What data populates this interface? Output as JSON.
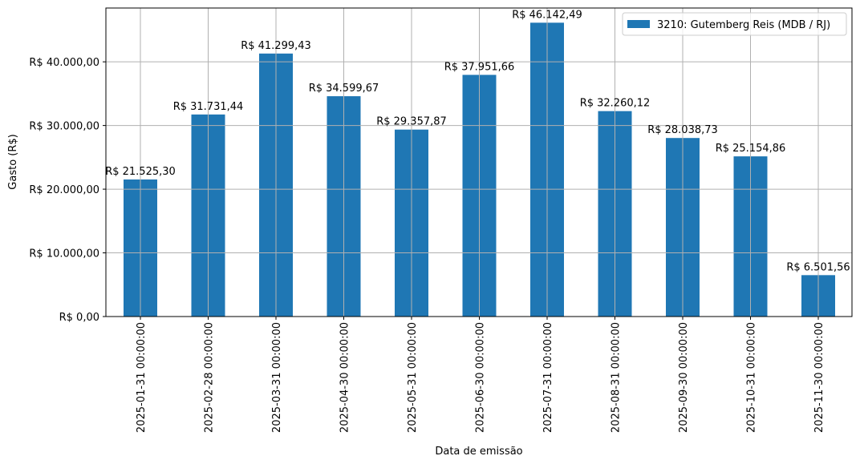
{
  "chart_data": {
    "type": "bar",
    "title": "",
    "xlabel": "Data de emissão",
    "ylabel": "Gasto (R$)",
    "categories": [
      "2025-01-31 00:00:00",
      "2025-02-28 00:00:00",
      "2025-03-31 00:00:00",
      "2025-04-30 00:00:00",
      "2025-05-31 00:00:00",
      "2025-06-30 00:00:00",
      "2025-07-31 00:00:00",
      "2025-08-31 00:00:00",
      "2025-09-30 00:00:00",
      "2025-10-31 00:00:00",
      "2025-11-30 00:00:00"
    ],
    "series": [
      {
        "name": "3210: Gutemberg Reis (MDB / RJ)",
        "color": "#1f77b4",
        "values": [
          21525.3,
          31731.44,
          41299.43,
          34599.67,
          29357.87,
          37951.66,
          46142.49,
          32260.12,
          28038.73,
          25154.86,
          6501.56
        ],
        "labels": [
          "R$ 21.525,30",
          "R$ 31.731,44",
          "R$ 41.299,43",
          "R$ 34.599,67",
          "R$ 29.357,87",
          "R$ 37.951,66",
          "R$ 46.142,49",
          "R$ 32.260,12",
          "R$ 28.038,73",
          "R$ 25.154,86",
          "R$ 6.501,56"
        ]
      }
    ],
    "yticks": [
      0,
      10000,
      20000,
      30000,
      40000
    ],
    "ytick_labels": [
      "R$ 0,00",
      "R$ 10.000,00",
      "R$ 20.000,00",
      "R$ 30.000,00",
      "R$ 40.000,00"
    ],
    "ylim": [
      0,
      48450
    ],
    "grid": true,
    "legend_position": "upper right",
    "x_tick_rotation": 90
  },
  "colors": {
    "bar": "#1f77b4",
    "grid": "#b0b0b0",
    "axis": "#000000",
    "legend_border": "#cccccc"
  }
}
